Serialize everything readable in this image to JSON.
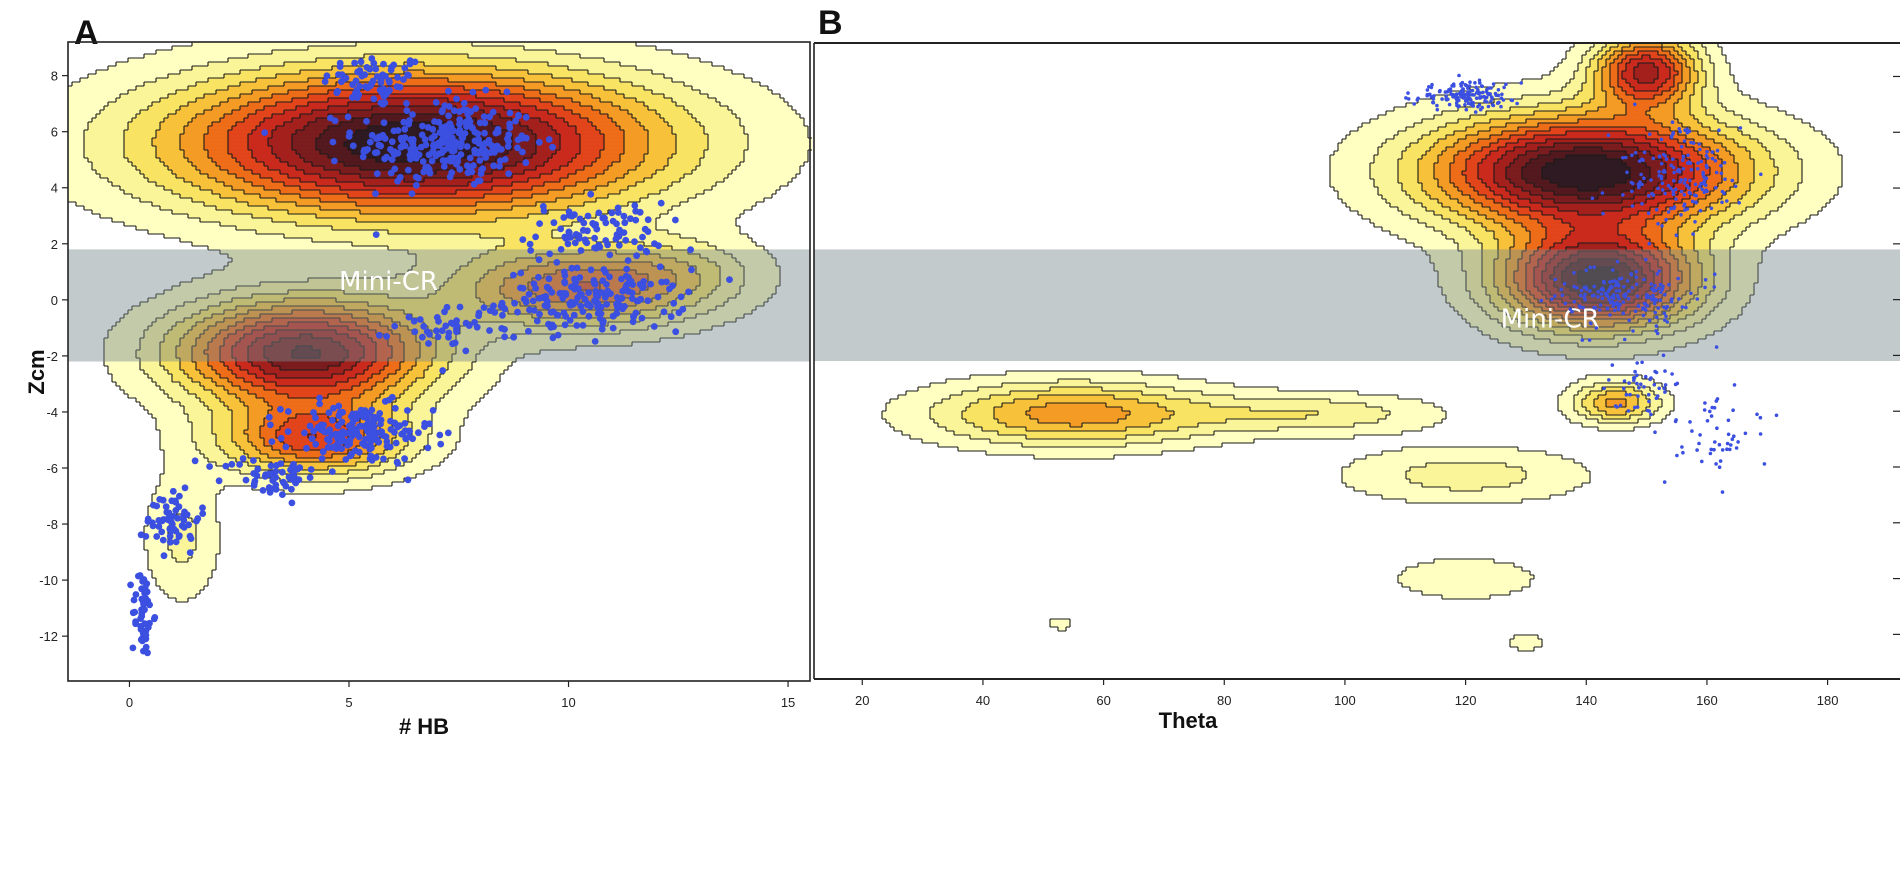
{
  "chart_data": [
    {
      "panel": "A",
      "type": "contour+scatter",
      "xlabel": "# HB",
      "ylabel": "Zcm",
      "xlim": [
        -1.4,
        15.5
      ],
      "ylim": [
        -13.6,
        9.2
      ],
      "xticks": [
        0,
        5,
        10,
        15
      ],
      "yticks": [
        8,
        6,
        4,
        2,
        0,
        -2,
        -4,
        -6,
        -8,
        -10,
        -12
      ],
      "band": {
        "label": "Mini-CR",
        "y_range": [
          -2.2,
          1.8
        ]
      },
      "scatter_color": "#3b4fe0",
      "scatter_clusters": [
        {
          "cx": 5.6,
          "cy": 7.8,
          "sx": 1.0,
          "sy": 0.8,
          "n": 70
        },
        {
          "cx": 7.2,
          "cy": 5.6,
          "sx": 1.7,
          "sy": 1.3,
          "n": 260
        },
        {
          "cx": 10.6,
          "cy": 2.4,
          "sx": 1.3,
          "sy": 0.9,
          "n": 90
        },
        {
          "cx": 10.6,
          "cy": 0.0,
          "sx": 1.7,
          "sy": 0.9,
          "n": 170
        },
        {
          "cx": 7.5,
          "cy": -0.9,
          "sx": 1.2,
          "sy": 0.7,
          "n": 50
        },
        {
          "cx": 5.2,
          "cy": -4.8,
          "sx": 1.4,
          "sy": 0.9,
          "n": 170
        },
        {
          "cx": 3.2,
          "cy": -6.3,
          "sx": 0.9,
          "sy": 0.6,
          "n": 50
        },
        {
          "cx": 1.0,
          "cy": -7.8,
          "sx": 0.5,
          "sy": 1.0,
          "n": 60
        },
        {
          "cx": 0.3,
          "cy": -11.2,
          "sx": 0.2,
          "sy": 1.3,
          "n": 50
        }
      ],
      "density_peaks": [
        {
          "cx": 6.5,
          "cy": 5.6,
          "sx": 3.8,
          "sy": 1.8,
          "w": 1.0
        },
        {
          "cx": 4.0,
          "cy": -1.9,
          "sx": 2.0,
          "sy": 1.3,
          "w": 0.85
        },
        {
          "cx": 4.2,
          "cy": -5.0,
          "sx": 1.5,
          "sy": 0.9,
          "w": 0.55
        },
        {
          "cx": 10.2,
          "cy": 0.4,
          "sx": 2.0,
          "sy": 1.0,
          "w": 0.5
        },
        {
          "cx": 1.2,
          "cy": -8.5,
          "sx": 0.6,
          "sy": 1.6,
          "w": 0.16
        },
        {
          "cx": 12.5,
          "cy": 1.1,
          "sx": 1.3,
          "sy": 0.8,
          "w": 0.13
        }
      ]
    },
    {
      "panel": "B",
      "type": "contour+scatter",
      "xlabel": "Theta",
      "ylabel": "",
      "xlim": [
        12,
        192
      ],
      "ylim": [
        -13.6,
        9.2
      ],
      "xticks": [
        20,
        40,
        60,
        80,
        100,
        120,
        140,
        160,
        180
      ],
      "band": {
        "label": "Mini-CR",
        "y_range": [
          -2.2,
          1.8
        ]
      },
      "scatter_color": "#3b4fe0",
      "scatter_clusters": [
        {
          "cx": 120,
          "cy": 7.3,
          "sx": 7,
          "sy": 0.4,
          "n": 160
        },
        {
          "cx": 155,
          "cy": 4.4,
          "sx": 9,
          "sy": 1.4,
          "n": 170
        },
        {
          "cx": 147,
          "cy": 0.1,
          "sx": 9,
          "sy": 0.9,
          "n": 180
        },
        {
          "cx": 150,
          "cy": -3.2,
          "sx": 5,
          "sy": 0.9,
          "n": 50
        },
        {
          "cx": 162,
          "cy": -4.8,
          "sx": 7,
          "sy": 1.4,
          "n": 50
        }
      ],
      "density_peaks": [
        {
          "cx": 150,
          "cy": 8.2,
          "sx": 6,
          "sy": 0.9,
          "w": 0.7
        },
        {
          "cx": 140,
          "cy": 4.6,
          "sx": 18,
          "sy": 1.4,
          "w": 1.0
        },
        {
          "cx": 142,
          "cy": 0.7,
          "sx": 11,
          "sy": 1.2,
          "w": 0.95
        },
        {
          "cx": 55,
          "cy": -4.1,
          "sx": 16,
          "sy": 0.8,
          "w": 0.42
        },
        {
          "cx": 95,
          "cy": -4.1,
          "sx": 14,
          "sy": 0.5,
          "w": 0.2
        },
        {
          "cx": 145,
          "cy": -3.7,
          "sx": 5,
          "sy": 0.5,
          "w": 0.4
        },
        {
          "cx": 120,
          "cy": -6.3,
          "sx": 14,
          "sy": 0.7,
          "w": 0.18
        },
        {
          "cx": 120,
          "cy": -10.0,
          "sx": 11,
          "sy": 0.7,
          "w": 0.1
        },
        {
          "cx": 53,
          "cy": -11.6,
          "sx": 2,
          "sy": 0.25,
          "w": 0.09
        },
        {
          "cx": 130,
          "cy": -12.3,
          "sx": 3,
          "sy": 0.3,
          "w": 0.09
        }
      ]
    }
  ],
  "colors": {
    "contour_ramp": [
      "#ffffc2",
      "#fbf59a",
      "#f8e462",
      "#f7c13a",
      "#f49b25",
      "#ee6d19",
      "#e2451b",
      "#c92a1d",
      "#a4201d",
      "#7b1c1e",
      "#52191f",
      "#2f1a22"
    ],
    "contour_line": "#1a1a1a",
    "band": "#7a8a8f"
  }
}
